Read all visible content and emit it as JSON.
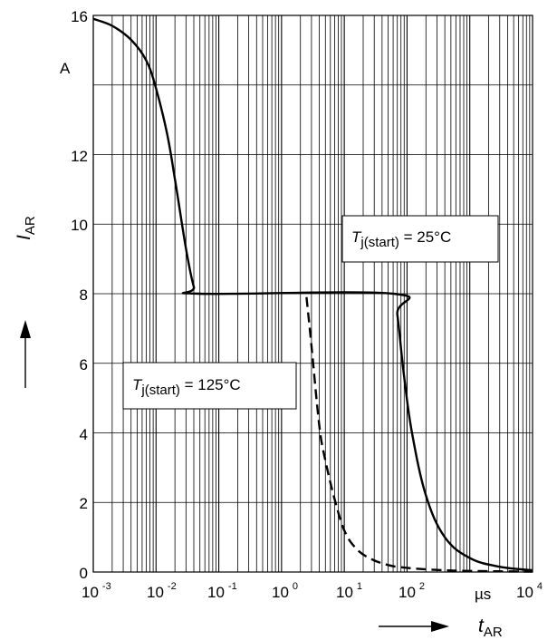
{
  "chart_data": {
    "type": "line",
    "title": "",
    "xscale": "log",
    "xlim": [
      0.001,
      10000
    ],
    "ylim": [
      0,
      16
    ],
    "grid": true,
    "x_ticks": [
      {
        "base": "10",
        "exp": "-3"
      },
      {
        "base": "10",
        "exp": "-2"
      },
      {
        "base": "10",
        "exp": "-1"
      },
      {
        "base": "10",
        "exp": "0"
      },
      {
        "base": "10",
        "exp": "1"
      },
      {
        "base": "10",
        "exp": "2"
      },
      {
        "base": "10",
        "exp": "4"
      }
    ],
    "y_ticks": [
      "0",
      "2",
      "4",
      "6",
      "8",
      "10",
      "12",
      "16"
    ],
    "x_unit": "µs",
    "y_unit": "A",
    "xlabel": {
      "main": "t",
      "sub": "AR"
    },
    "ylabel": {
      "main": "I",
      "sub": "AR"
    },
    "series": [
      {
        "name": "T j(start) = 25°C",
        "style": "solid",
        "color": "#000000",
        "x": [
          0.001,
          0.002,
          0.004,
          0.007,
          0.01,
          0.015,
          0.02,
          0.03,
          0.04,
          0.05,
          60,
          70,
          90,
          120,
          200,
          400,
          1000,
          3000,
          10000
        ],
        "y": [
          15.9,
          15.7,
          15.3,
          14.7,
          13.9,
          12.6,
          11.3,
          9.3,
          8.2,
          8.0,
          8.0,
          7.4,
          5.6,
          4.0,
          2.2,
          1.0,
          0.4,
          0.15,
          0.05
        ]
      },
      {
        "name": "T j(start) = 125°C",
        "style": "dashed",
        "color": "#000000",
        "x": [
          2.5,
          3.0,
          4.0,
          5.0,
          7.0,
          10.0,
          15.0,
          25.0,
          50.0,
          100.0,
          300.0,
          1000.0,
          10000.0
        ],
        "y": [
          7.9,
          6.5,
          4.2,
          3.2,
          2.1,
          1.2,
          0.7,
          0.4,
          0.2,
          0.12,
          0.06,
          0.03,
          0.01
        ]
      }
    ],
    "annotations": [
      {
        "main": "T",
        "sub": "j(start)",
        "rest": " = 25°C"
      },
      {
        "main": "T",
        "sub": "j(start)",
        "rest": " = 125°C"
      }
    ]
  }
}
